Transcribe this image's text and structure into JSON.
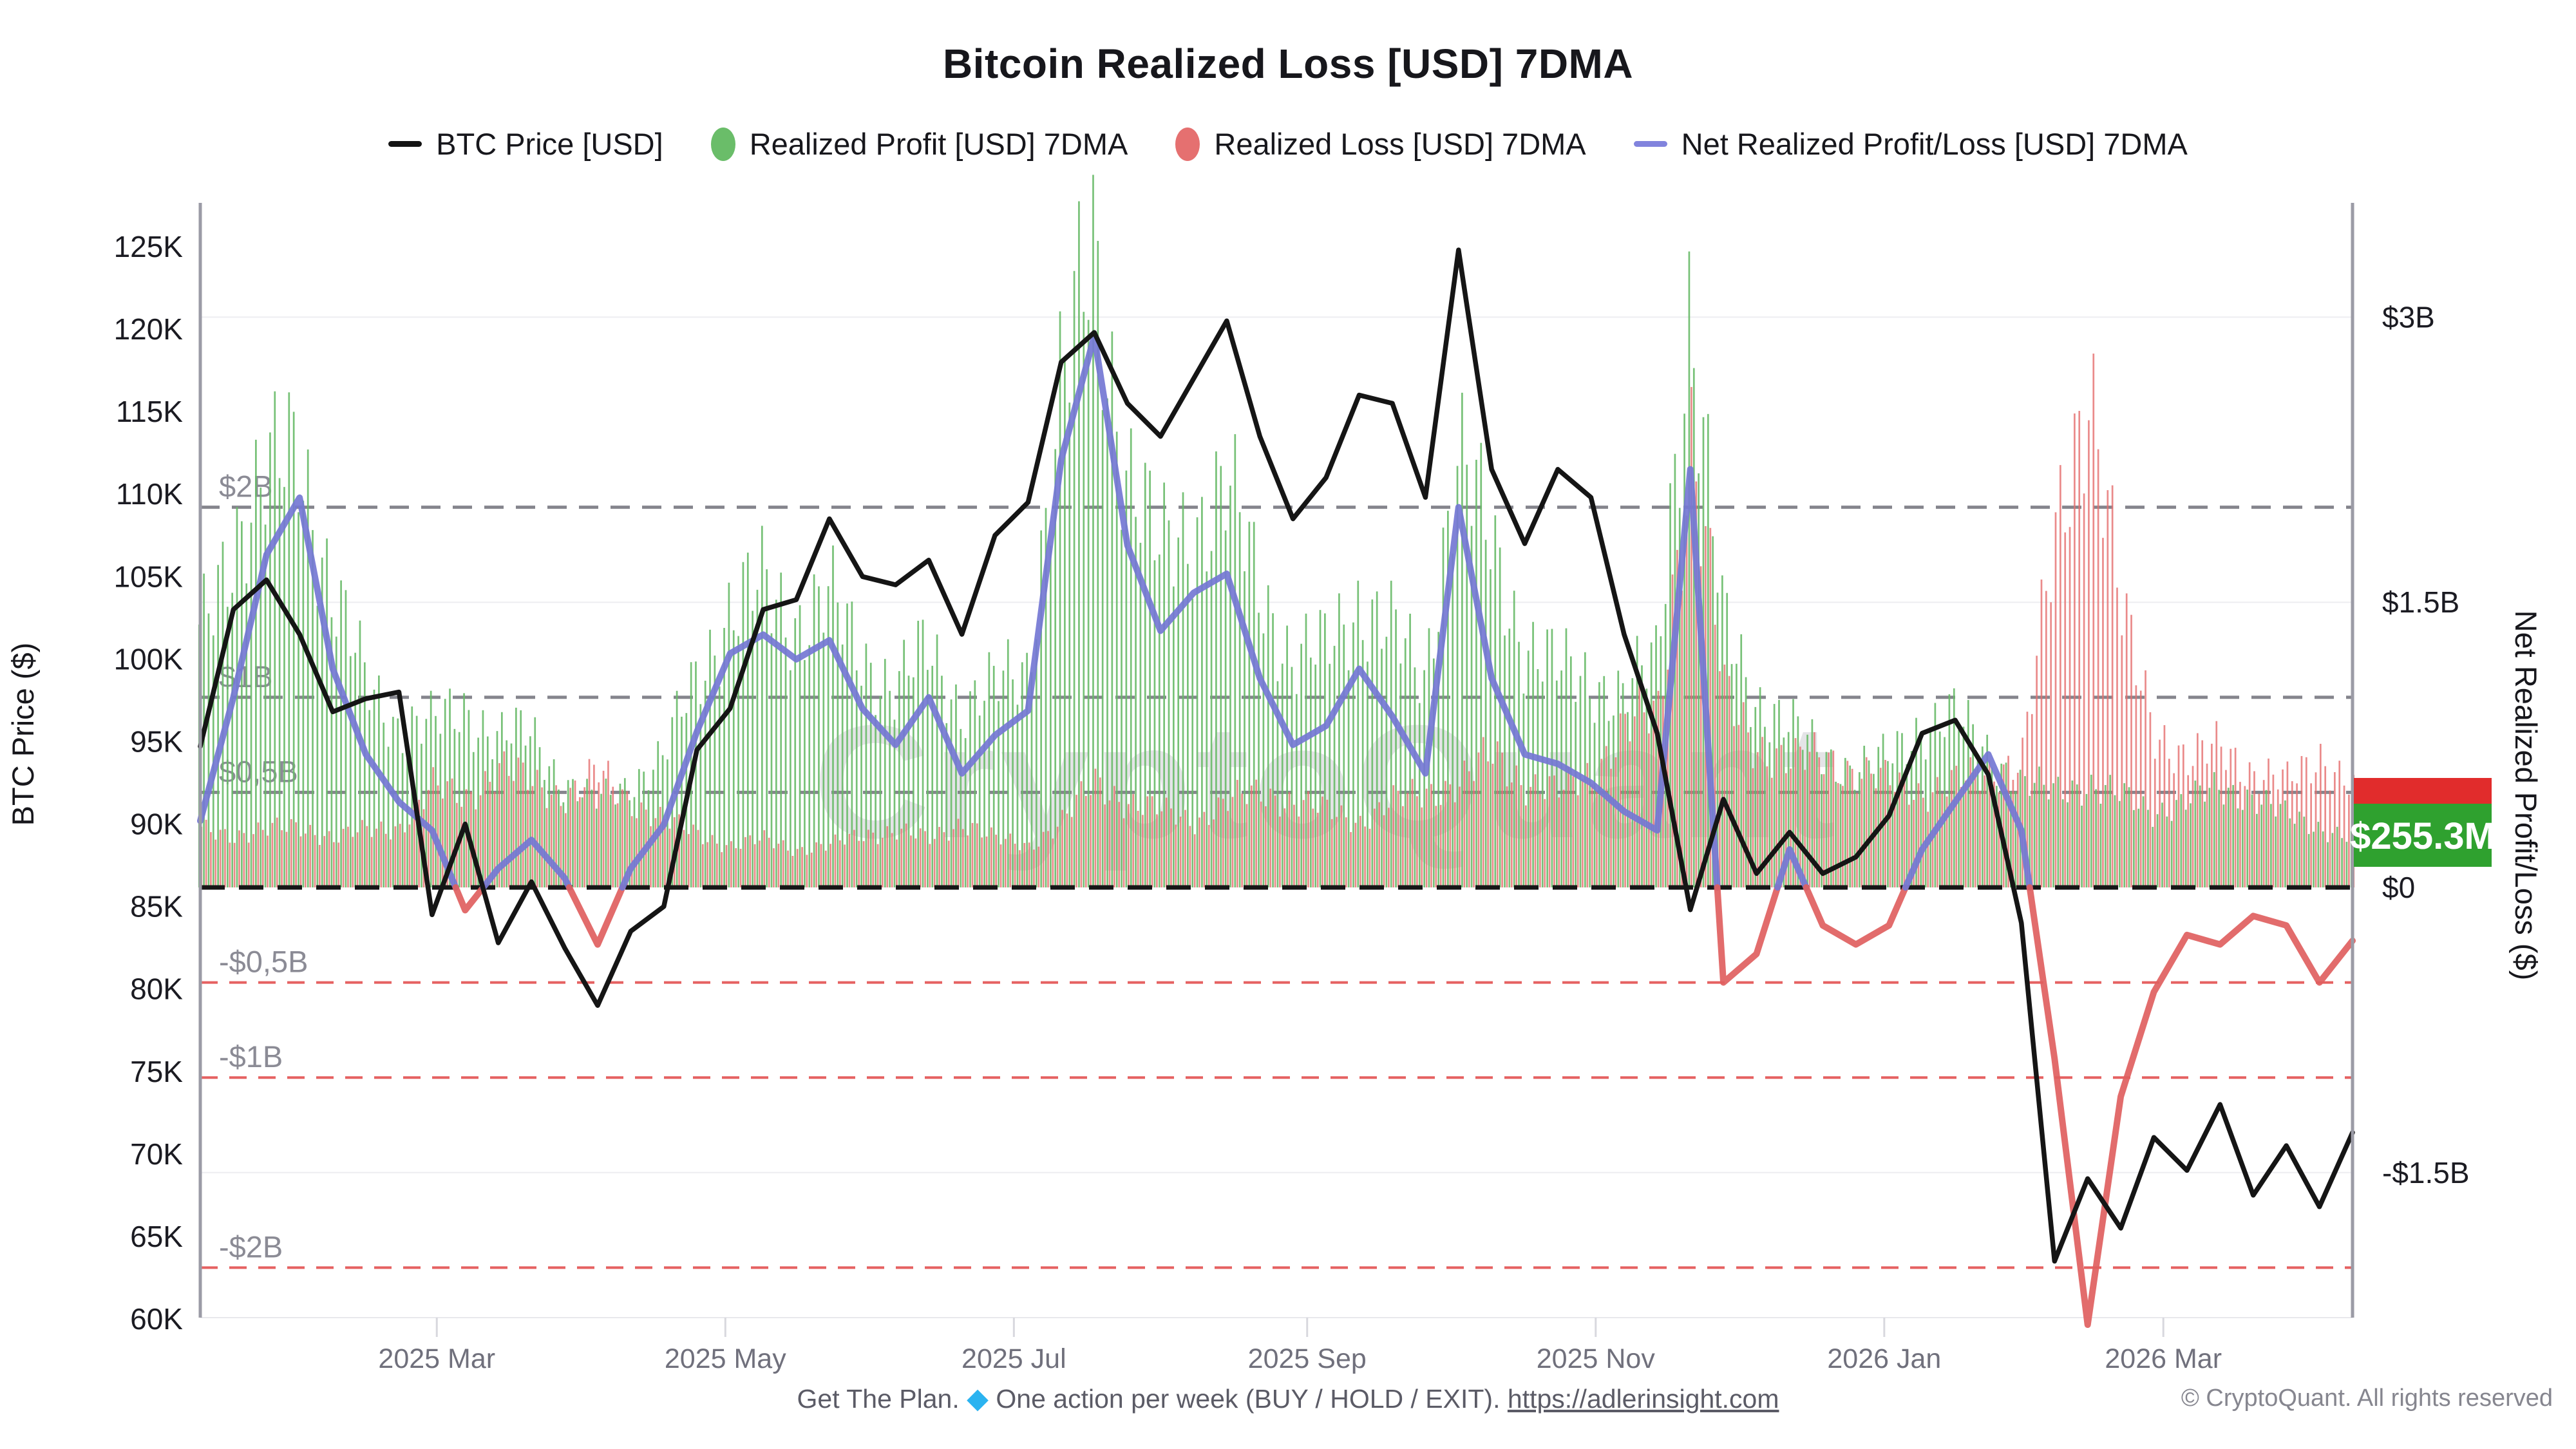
{
  "title": "Bitcoin Realized Loss [USD] 7DMA",
  "watermark": "CryptoQuant",
  "legend": {
    "items": [
      {
        "label": "BTC Price [USD]",
        "marker": "line",
        "color": "#141414"
      },
      {
        "label": "Realized Profit [USD] 7DMA",
        "marker": "circle",
        "color": "#6abd69"
      },
      {
        "label": "Realized Loss [USD] 7DMA",
        "marker": "circle",
        "color": "#e57070"
      },
      {
        "label": "Net Realized Profit/Loss [USD] 7DMA",
        "marker": "line",
        "color": "#8183dd"
      }
    ]
  },
  "axes": {
    "left": {
      "label": "BTC Price ($)",
      "ticks": [
        {
          "label": "125K",
          "value": 125
        },
        {
          "label": "120K",
          "value": 120
        },
        {
          "label": "115K",
          "value": 115
        },
        {
          "label": "110K",
          "value": 110
        },
        {
          "label": "105K",
          "value": 105
        },
        {
          "label": "100K",
          "value": 100
        },
        {
          "label": "95K",
          "value": 95
        },
        {
          "label": "90K",
          "value": 90
        },
        {
          "label": "85K",
          "value": 85
        },
        {
          "label": "80K",
          "value": 80
        },
        {
          "label": "75K",
          "value": 75
        },
        {
          "label": "70K",
          "value": 70
        },
        {
          "label": "65K",
          "value": 65
        },
        {
          "label": "60K",
          "value": 60
        }
      ]
    },
    "right": {
      "label": "Net Realized Profit/Loss ($)",
      "ticks": [
        {
          "label": "$3B",
          "value": 3
        },
        {
          "label": "$1.5B",
          "value": 1.5
        },
        {
          "label": "$0",
          "value": 0
        },
        {
          "label": "-$1.5B",
          "value": -1.5
        }
      ]
    },
    "x": {
      "ticks": [
        {
          "label": "2025 Mar",
          "day": 50
        },
        {
          "label": "2025 May",
          "day": 111
        },
        {
          "label": "2025 Jul",
          "day": 172
        },
        {
          "label": "2025 Sep",
          "day": 234
        },
        {
          "label": "2025 Nov",
          "day": 295
        },
        {
          "label": "2026 Jan",
          "day": 356
        },
        {
          "label": "2026 Mar",
          "day": 415
        }
      ]
    }
  },
  "reference_lines": [
    {
      "label": "$2B",
      "value": 2,
      "style": "gray-dashed"
    },
    {
      "label": "$1B",
      "value": 1,
      "style": "gray-dashed"
    },
    {
      "label": "$0,5B",
      "value": 0.5,
      "style": "gray-dashed"
    },
    {
      "label": "-$0,5B",
      "value": -0.5,
      "style": "red-dashed"
    },
    {
      "label": "-$1B",
      "value": -1,
      "style": "red-dashed"
    },
    {
      "label": "-$2B",
      "value": -2,
      "style": "red-dashed"
    },
    {
      "label": "",
      "value": 0,
      "style": "black-dashed"
    }
  ],
  "badges": {
    "loss": {
      "color": "#e12c2c",
      "label": ""
    },
    "profit": {
      "color": "#2fa12f",
      "label": "$255.3M"
    }
  },
  "footer": {
    "promo_prefix": "Get The Plan.",
    "diamond_icon": "◆",
    "promo_suffix": "One action per week (BUY / HOLD / EXIT).",
    "link_text": "https://adlerinsight.com",
    "copyright": "© CryptoQuant. All rights reserved"
  },
  "chart_data": {
    "type": "mixed",
    "x_start_date": "2025-01-10",
    "x_step_days": 7,
    "n_points": 66,
    "x_total_days": 455,
    "left_axis_range_usd": [
      60000,
      125000
    ],
    "right_axis_range_billions": [
      -2.6,
      3.55
    ],
    "grid": "horizontal-faint",
    "legend_position": "top-center",
    "series": [
      {
        "name": "BTC Price [USD]",
        "type": "line",
        "axis": "left",
        "unit": "thousand USD",
        "color": "#151515",
        "values": [
          94.7,
          103.0,
          104.8,
          101.5,
          96.8,
          97.6,
          98.0,
          84.5,
          90.0,
          82.8,
          86.5,
          82.5,
          79.0,
          83.5,
          85.0,
          94.5,
          97.0,
          103.0,
          103.6,
          108.5,
          105.0,
          104.5,
          106.0,
          101.5,
          107.5,
          109.5,
          118.0,
          119.8,
          115.5,
          113.5,
          117.0,
          120.5,
          113.5,
          108.5,
          111.0,
          116.0,
          115.5,
          109.8,
          124.8,
          111.5,
          107.0,
          111.5,
          109.8,
          101.5,
          95.5,
          84.8,
          91.5,
          87.0,
          89.5,
          87.0,
          88.0,
          90.5,
          95.5,
          96.3,
          93.0,
          84.0,
          63.5,
          68.5,
          65.5,
          71.0,
          69.0,
          73.0,
          67.5,
          70.5,
          66.8,
          71.3
        ]
      },
      {
        "name": "Realized Profit [USD] 7DMA",
        "type": "bar",
        "axis": "right",
        "unit": "billion USD",
        "color": "#68ba68",
        "values": [
          1.3,
          1.85,
          2.1,
          2.35,
          1.55,
          1.1,
          0.85,
          0.85,
          0.95,
          0.78,
          0.82,
          0.55,
          0.45,
          0.55,
          0.68,
          1.1,
          1.45,
          1.58,
          1.4,
          1.52,
          1.22,
          1.05,
          1.25,
          0.95,
          1.05,
          1.15,
          2.6,
          3.3,
          2.25,
          1.75,
          1.9,
          2.1,
          1.6,
          1.2,
          1.25,
          1.5,
          1.35,
          1.1,
          2.3,
          1.8,
          1.3,
          1.15,
          1.1,
          1.0,
          1.2,
          3.05,
          1.4,
          1.0,
          0.85,
          0.7,
          0.62,
          0.68,
          0.85,
          0.9,
          0.72,
          0.55,
          0.5,
          0.55,
          0.48,
          0.4,
          0.45,
          0.52,
          0.48,
          0.38,
          0.32,
          0.26
        ]
      },
      {
        "name": "Realized Loss [USD] 7DMA",
        "type": "bar",
        "axis": "right",
        "unit": "billion USD",
        "color": "#e57070",
        "values": [
          0.3,
          0.28,
          0.3,
          0.32,
          0.26,
          0.3,
          0.32,
          0.52,
          0.48,
          0.62,
          0.55,
          0.48,
          0.6,
          0.45,
          0.35,
          0.28,
          0.22,
          0.25,
          0.2,
          0.22,
          0.28,
          0.3,
          0.25,
          0.35,
          0.25,
          0.22,
          0.35,
          0.55,
          0.45,
          0.4,
          0.35,
          0.45,
          0.5,
          0.45,
          0.4,
          0.35,
          0.45,
          0.5,
          0.55,
          0.7,
          0.55,
          0.5,
          0.6,
          0.85,
          0.9,
          2.4,
          1.0,
          0.75,
          0.65,
          0.7,
          0.6,
          0.55,
          0.5,
          0.55,
          0.6,
          0.7,
          1.8,
          2.75,
          1.4,
          0.85,
          0.65,
          0.75,
          0.6,
          0.55,
          0.7,
          0.52
        ]
      },
      {
        "name": "Net Realized Profit/Loss [USD] 7DMA",
        "type": "line",
        "axis": "right",
        "unit": "billion USD",
        "color_positive": "#7477d4",
        "color_negative": "#e06060",
        "values": [
          0.35,
          1.0,
          1.75,
          2.05,
          1.15,
          0.7,
          0.45,
          0.3,
          -0.12,
          0.1,
          0.25,
          0.05,
          -0.3,
          0.1,
          0.33,
          0.82,
          1.23,
          1.33,
          1.2,
          1.3,
          0.94,
          0.75,
          1.0,
          0.6,
          0.8,
          0.93,
          2.25,
          2.9,
          1.8,
          1.35,
          1.55,
          1.65,
          1.1,
          0.75,
          0.85,
          1.15,
          0.9,
          0.6,
          2.0,
          1.1,
          0.7,
          0.65,
          0.55,
          0.4,
          0.3,
          2.2,
          -0.5,
          -0.35,
          0.2,
          -0.2,
          -0.3,
          -0.2,
          0.2,
          0.45,
          0.7,
          0.3,
          -0.9,
          -2.3,
          -1.1,
          -0.55,
          -0.25,
          -0.3,
          -0.15,
          -0.2,
          -0.5,
          -0.28
        ]
      }
    ],
    "last_value_badges": {
      "realized_profit": "$255.3M"
    }
  }
}
